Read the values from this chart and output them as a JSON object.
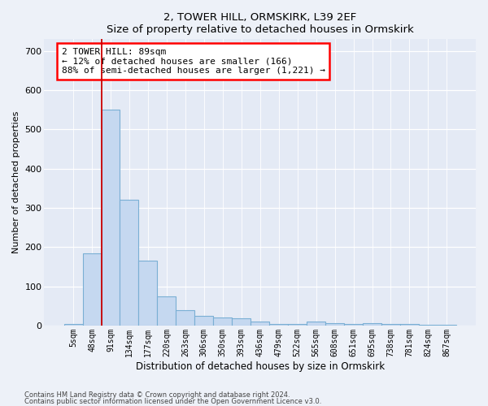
{
  "title1": "2, TOWER HILL, ORMSKIRK, L39 2EF",
  "title2": "Size of property relative to detached houses in Ormskirk",
  "xlabel": "Distribution of detached houses by size in Ormskirk",
  "ylabel": "Number of detached properties",
  "bar_labels": [
    "5sqm",
    "48sqm",
    "91sqm",
    "134sqm",
    "177sqm",
    "220sqm",
    "263sqm",
    "306sqm",
    "350sqm",
    "393sqm",
    "436sqm",
    "479sqm",
    "522sqm",
    "565sqm",
    "608sqm",
    "651sqm",
    "695sqm",
    "738sqm",
    "781sqm",
    "824sqm",
    "867sqm"
  ],
  "bar_values": [
    3,
    185,
    550,
    320,
    165,
    75,
    40,
    25,
    20,
    18,
    10,
    5,
    5,
    10,
    6,
    5,
    7,
    4,
    3,
    2,
    2
  ],
  "bar_color": "#c5d8f0",
  "bar_edge_color": "#7aafd4",
  "highlight_color": "#cc0000",
  "annotation_text": "2 TOWER HILL: 89sqm\n← 12% of detached houses are smaller (166)\n88% of semi-detached houses are larger (1,221) →",
  "ylim": [
    0,
    730
  ],
  "yticks": [
    0,
    100,
    200,
    300,
    400,
    500,
    600,
    700
  ],
  "footnote1": "Contains HM Land Registry data © Crown copyright and database right 2024.",
  "footnote2": "Contains public sector information licensed under the Open Government Licence v3.0.",
  "bg_color": "#edf1f8",
  "plot_bg_color": "#e4eaf5"
}
